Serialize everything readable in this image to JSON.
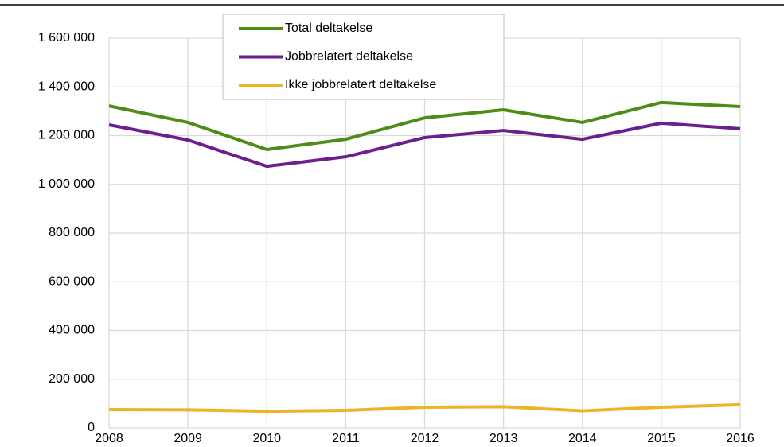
{
  "chart_data": {
    "type": "line",
    "categories": [
      "2008",
      "2009",
      "2010",
      "2011",
      "2012",
      "2013",
      "2014",
      "2015",
      "2016"
    ],
    "series": [
      {
        "name": "Total deltakelse",
        "color": "#4e8b17",
        "values": [
          1322000,
          1254000,
          1143000,
          1185000,
          1273000,
          1306000,
          1254000,
          1336000,
          1319000
        ]
      },
      {
        "name": "Jobbrelatert deltakelse",
        "color": "#6b1f8e",
        "values": [
          1244000,
          1182000,
          1074000,
          1113000,
          1192000,
          1221000,
          1185000,
          1251000,
          1228000
        ]
      },
      {
        "name": "Ikke jobbrelatert deltakelse",
        "color": "#efb326",
        "values": [
          75000,
          74000,
          68000,
          72000,
          85000,
          87000,
          70000,
          85000,
          95000
        ]
      }
    ],
    "ylim": [
      0,
      1600000
    ],
    "yticks": [
      0,
      {
        "value": 200000,
        "label": "200 000"
      },
      {
        "value": 400000,
        "label": "400 000"
      },
      {
        "value": 600000,
        "label": "600 000"
      },
      {
        "value": 800000,
        "label": "800 000"
      },
      {
        "value": 1000000,
        "label": "1 000 000"
      },
      {
        "value": 1200000,
        "label": "1 200 000"
      },
      {
        "value": 1400000,
        "label": "1 400 000"
      },
      {
        "value": 1600000,
        "label": "1 600 000"
      }
    ],
    "grid": true,
    "legend": "top"
  }
}
